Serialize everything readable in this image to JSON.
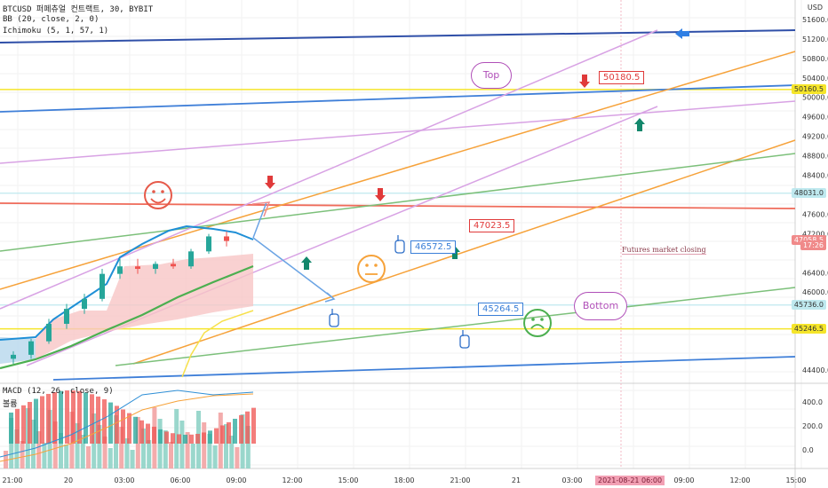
{
  "header": {
    "symbol_line": "BTCUSD 퍼페츄얼 컨트랙트, 30, BYBIT",
    "bb_line": "BB (20, close, 2, 0)",
    "ichimoku_line": "Ichimoku (5, 1, 57, 1)",
    "currency": "USD"
  },
  "price_axis": {
    "ticks": [
      "51600.0",
      "51200.0",
      "50800.0",
      "50400.0",
      "50000.0",
      "49600.0",
      "49200.0",
      "48800.0",
      "48400.0",
      "47600.0",
      "47200.0",
      "46400.0",
      "46000.0",
      "44400.0"
    ],
    "tags": [
      {
        "label": "50160.5",
        "bg": "#f5e52a",
        "fg": "#333333",
        "price": 50160.5
      },
      {
        "label": "48031.0",
        "bg": "#bfe9ef",
        "fg": "#333333",
        "price": 48031.0
      },
      {
        "label": "47058.5",
        "bg": "#f08a8a",
        "fg": "#ffffff",
        "price": 47058.5
      },
      {
        "label": "17:26",
        "bg": "#f08a8a",
        "fg": "#ffffff",
        "price": 46950
      },
      {
        "label": "45736.0",
        "bg": "#bfe9ef",
        "fg": "#333333",
        "price": 45736.0
      },
      {
        "label": "45246.5",
        "bg": "#f5e52a",
        "fg": "#333333",
        "price": 45246.5
      }
    ]
  },
  "time_axis": {
    "ticks": [
      "21:00",
      "20",
      "03:00",
      "06:00",
      "09:00",
      "12:00",
      "15:00",
      "18:00",
      "21:00",
      "21",
      "03:00",
      "06:00",
      "09:00",
      "12:00",
      "15:00"
    ],
    "highlight": "2021-08-21 06:00"
  },
  "macd": {
    "title": "MACD (12, 26, close, 9)",
    "subtitle": "볼륨",
    "ticks": [
      "400.0",
      "200.0",
      "0.0"
    ]
  },
  "annotations": {
    "top_bubble": "Top",
    "bottom_bubble": "Bottom",
    "label_50180": "50180.5",
    "label_47023": "47023.5",
    "label_46572": "46572.5",
    "label_45264": "45264.5",
    "futures_note": "Futures market closing"
  },
  "colors": {
    "up_candle": "#26a69a",
    "down_candle": "#ef5350",
    "yellow_line": "#f5e52a",
    "blue_line": "#3f7fd8",
    "orange_line": "#f6a23a",
    "green_line": "#7cc07a",
    "purple_line": "#d8a2e4",
    "red_line": "#ef6b5a"
  },
  "chart_data": {
    "type": "candlestick",
    "symbol": "BTCUSD",
    "exchange": "BYBIT",
    "interval": "30",
    "ylim": [
      44200,
      52000
    ],
    "horizontal_levels": [
      50160.5,
      48031.0,
      45736.0,
      45246.5
    ],
    "last_price": 47058.5,
    "candles": [
      {
        "t": "21:00",
        "o": 44700,
        "h": 44850,
        "l": 44600,
        "c": 44780
      },
      {
        "t": "22:00",
        "o": 44780,
        "h": 45100,
        "l": 44700,
        "c": 45050
      },
      {
        "t": "20 00:00",
        "o": 45050,
        "h": 45500,
        "l": 45000,
        "c": 45400
      },
      {
        "t": "01:00",
        "o": 45400,
        "h": 45800,
        "l": 45300,
        "c": 45700
      },
      {
        "t": "02:00",
        "o": 45700,
        "h": 46000,
        "l": 45600,
        "c": 45900
      },
      {
        "t": "03:00",
        "o": 45900,
        "h": 46500,
        "l": 45850,
        "c": 46400
      },
      {
        "t": "04:00",
        "o": 46400,
        "h": 46700,
        "l": 46300,
        "c": 46550
      },
      {
        "t": "05:00",
        "o": 46550,
        "h": 46700,
        "l": 46400,
        "c": 46500
      },
      {
        "t": "06:00",
        "o": 46500,
        "h": 46650,
        "l": 46400,
        "c": 46600
      },
      {
        "t": "07:00",
        "o": 46600,
        "h": 46700,
        "l": 46500,
        "c": 46550
      },
      {
        "t": "08:00",
        "o": 46550,
        "h": 46900,
        "l": 46500,
        "c": 46850
      },
      {
        "t": "09:00",
        "o": 46850,
        "h": 47200,
        "l": 46800,
        "c": 47150
      },
      {
        "t": "10:00",
        "o": 47150,
        "h": 47250,
        "l": 46950,
        "c": 47058.5
      }
    ]
  }
}
